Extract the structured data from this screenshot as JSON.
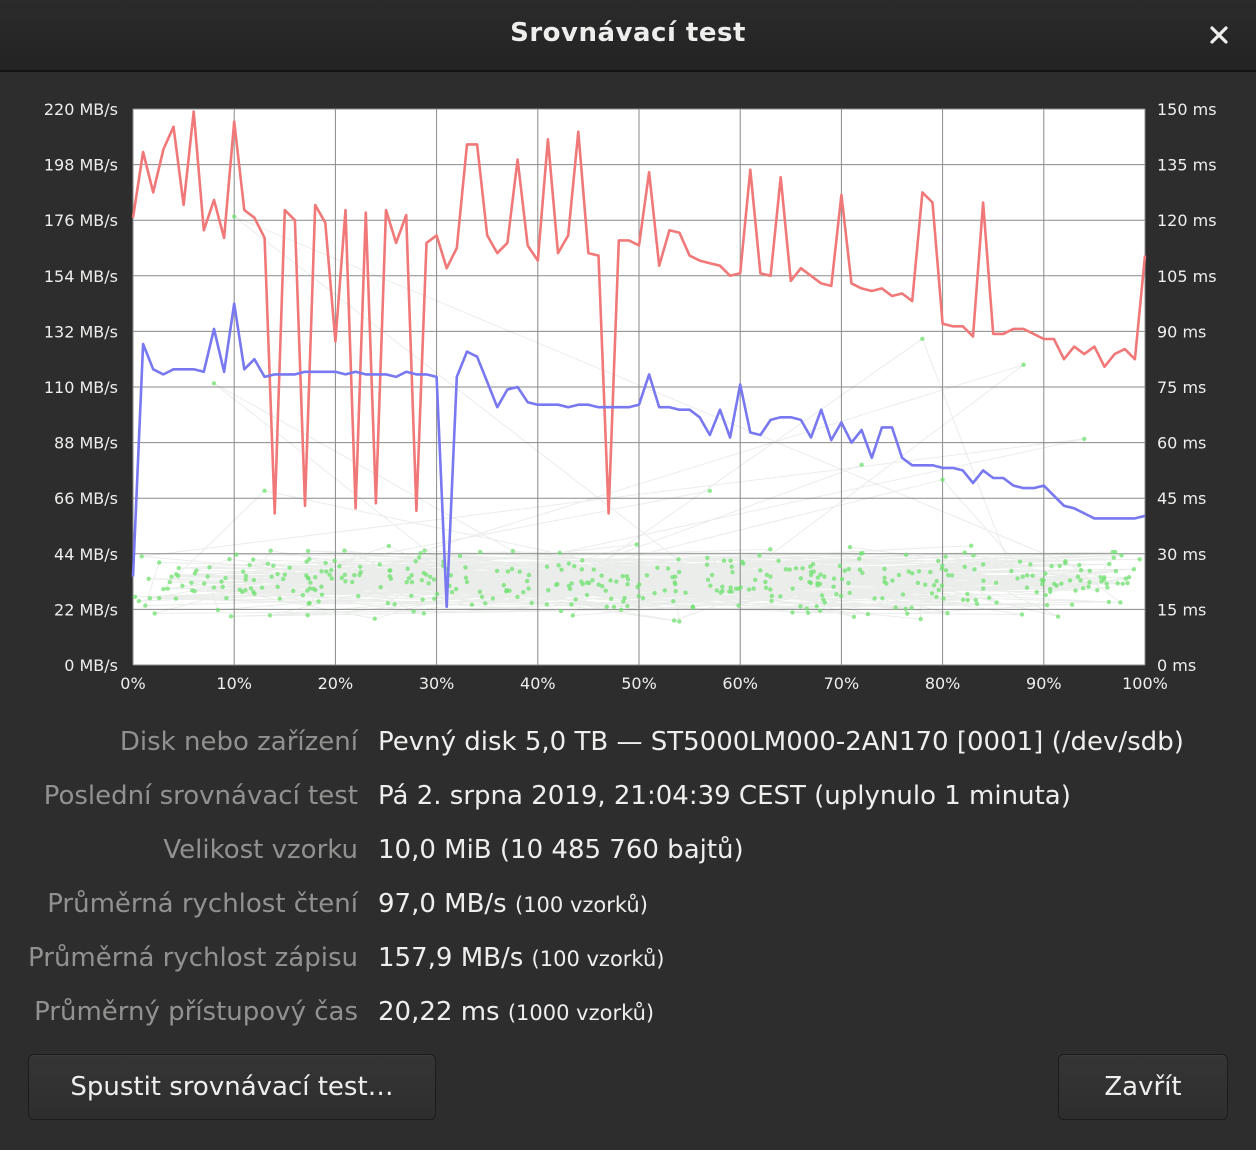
{
  "window": {
    "title": "Srovnávací test",
    "close_icon": "close-icon"
  },
  "chart_data": {
    "type": "line",
    "x_ticks": [
      "0%",
      "10%",
      "20%",
      "30%",
      "40%",
      "50%",
      "60%",
      "70%",
      "80%",
      "90%",
      "100%"
    ],
    "y_left_ticks": [
      "0 MB/s",
      "22 MB/s",
      "44 MB/s",
      "66 MB/s",
      "88 MB/s",
      "110 MB/s",
      "132 MB/s",
      "154 MB/s",
      "176 MB/s",
      "198 MB/s",
      "220 MB/s"
    ],
    "y_right_ticks": [
      "0 ms",
      "15 ms",
      "30 ms",
      "45 ms",
      "60 ms",
      "75 ms",
      "90 ms",
      "105 ms",
      "120 ms",
      "135 ms",
      "150 ms"
    ],
    "xlim": [
      0,
      100
    ],
    "ylim_left": [
      0,
      220
    ],
    "ylim_right": [
      0,
      150
    ],
    "grid": true,
    "colors": {
      "write": "#f07878",
      "read": "#7878f0",
      "access": "#70e070",
      "grid": "#8a8a8a",
      "plot_bg": "#ffffff"
    },
    "series": [
      {
        "key": "write",
        "axis": "left",
        "values": [
          177,
          203,
          187,
          204,
          213,
          182,
          219,
          172,
          184,
          169,
          215,
          180,
          177,
          169,
          60,
          180,
          176,
          63,
          182,
          175,
          128,
          180,
          62,
          179,
          64,
          180,
          167,
          178,
          61,
          167,
          170,
          157,
          165,
          206,
          206,
          170,
          163,
          167,
          200,
          166,
          160,
          208,
          163,
          170,
          211,
          163,
          162,
          60,
          168,
          168,
          166,
          195,
          158,
          172,
          171,
          162,
          160,
          159,
          158,
          154,
          155,
          196,
          155,
          154,
          193,
          152,
          157,
          154,
          151,
          150,
          186,
          151,
          149,
          148,
          149,
          146,
          147,
          144,
          187,
          183,
          135,
          134,
          134,
          130,
          183,
          131,
          131,
          133,
          133,
          131,
          129,
          129,
          121,
          126,
          123,
          126,
          118,
          123,
          125,
          121,
          162
        ]
      },
      {
        "key": "read",
        "axis": "left",
        "values": [
          35,
          127,
          117,
          115,
          117,
          117,
          117,
          116,
          133,
          116,
          143,
          117,
          121,
          114,
          115,
          115,
          115,
          116,
          116,
          116,
          116,
          115,
          116,
          115,
          115,
          115,
          114,
          116,
          115,
          115,
          114,
          23,
          114,
          124,
          122,
          112,
          102,
          109,
          110,
          104,
          103,
          103,
          103,
          102,
          103,
          103,
          102,
          102,
          102,
          102,
          103,
          115,
          102,
          102,
          101,
          101,
          98,
          91,
          101,
          90,
          111,
          92,
          91,
          97,
          98,
          98,
          97,
          90,
          101,
          89,
          96,
          88,
          93,
          82,
          94,
          94,
          82,
          79,
          79,
          79,
          78,
          78,
          77,
          72,
          77,
          74,
          74,
          71,
          70,
          70,
          71,
          67,
          63,
          62,
          60,
          58,
          58,
          58,
          58,
          58,
          59
        ]
      }
    ],
    "access_scatter_ms": {
      "approx_count": 1000,
      "dominant_range_ms": [
        10,
        35
      ],
      "outliers_ms": [
        {
          "x": 8,
          "y": 76
        },
        {
          "x": 10,
          "y": 121
        },
        {
          "x": 78,
          "y": 88
        },
        {
          "x": 88,
          "y": 81
        },
        {
          "x": 94,
          "y": 61
        },
        {
          "x": 72,
          "y": 54
        },
        {
          "x": 80,
          "y": 50
        },
        {
          "x": 13,
          "y": 47
        },
        {
          "x": 57,
          "y": 47
        }
      ]
    }
  },
  "info": [
    {
      "label": "Disk nebo zařízení",
      "value": "Pevný disk 5,0 TB — ST5000LM000-2AN170 [0001] (/dev/sdb)",
      "extra": ""
    },
    {
      "label": "Poslední srovnávací test",
      "value": "Pá 2. srpna 2019, 21:04:39 CEST (uplynulo 1 minuta)",
      "extra": ""
    },
    {
      "label": "Velikost vzorku",
      "value": "10,0 MiB (10 485 760 bajtů)",
      "extra": ""
    },
    {
      "label": "Průměrná rychlost čtení",
      "value": "97,0 MB/s",
      "extra": "(100 vzorků)"
    },
    {
      "label": "Průměrná rychlost zápisu",
      "value": "157,9 MB/s",
      "extra": "(100 vzorků)"
    },
    {
      "label": "Průměrný přístupový čas",
      "value": "20,22 ms",
      "extra": "(1000 vzorků)"
    }
  ],
  "buttons": {
    "start": "Spustit srovnávací test…",
    "close": "Zavřít"
  }
}
